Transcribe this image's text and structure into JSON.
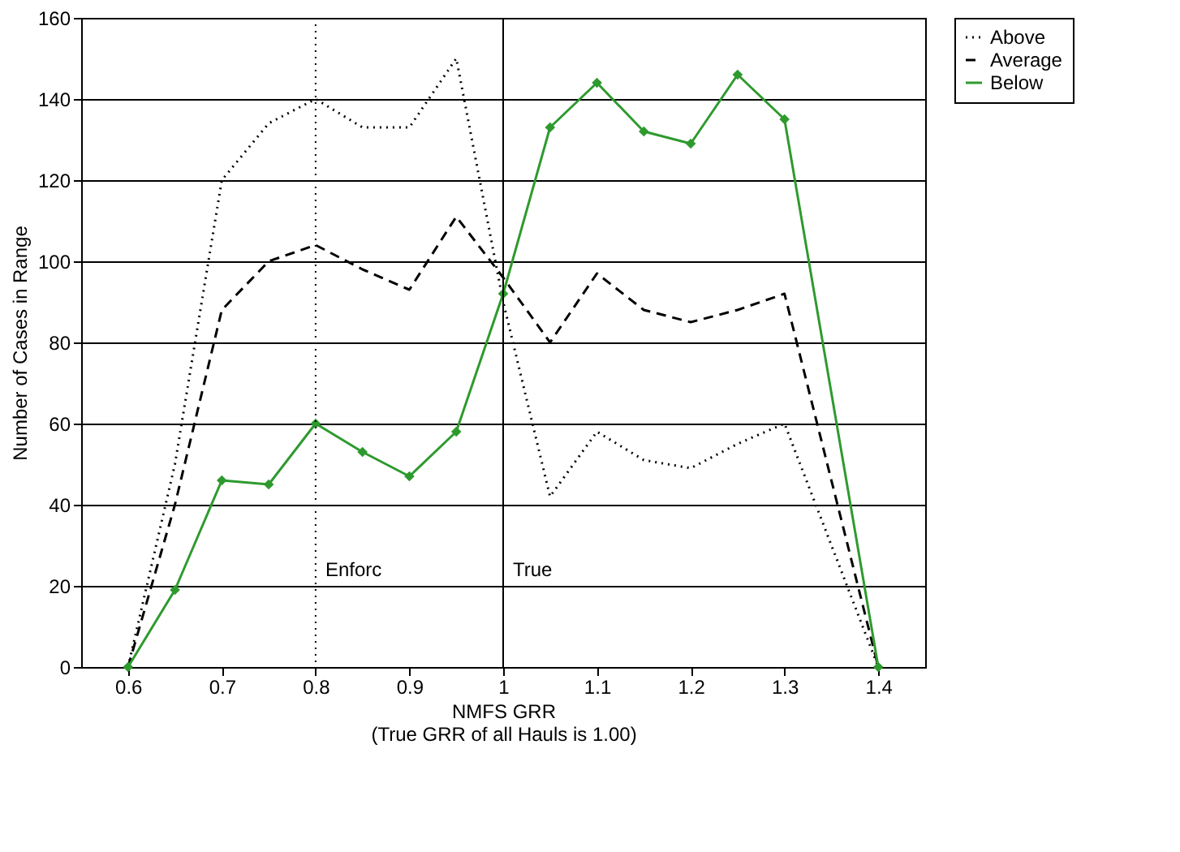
{
  "chart_data": {
    "type": "line",
    "xlabel": "NMFS GRR\n(True GRR of all Hauls is 1.00)",
    "ylabel": "Number of Cases in Range",
    "x": [
      0.6,
      0.65,
      0.7,
      0.75,
      0.8,
      0.85,
      0.9,
      0.95,
      1.0,
      1.05,
      1.1,
      1.15,
      1.2,
      1.25,
      1.3,
      1.4
    ],
    "series": [
      {
        "name": "Above",
        "color": "#000000",
        "line_style": "dotted",
        "marker": "none",
        "values": [
          0,
          50,
          120,
          134,
          140,
          133,
          133,
          150,
          90,
          42,
          58,
          51,
          49,
          55,
          60,
          0
        ]
      },
      {
        "name": "Average",
        "color": "#000000",
        "line_style": "dashed",
        "marker": "none",
        "values": [
          0,
          40,
          88,
          100,
          104,
          98,
          93,
          111,
          96,
          80,
          97,
          88,
          85,
          88,
          92,
          0
        ]
      },
      {
        "name": "Below",
        "color": "#2e9a2e",
        "line_style": "solid",
        "marker": "diamond",
        "values": [
          0,
          19,
          46,
          45,
          60,
          53,
          47,
          58,
          92,
          133,
          144,
          132,
          129,
          146,
          135,
          0
        ]
      }
    ],
    "xlim": [
      0.55,
      1.45
    ],
    "xticks": [
      0.6,
      0.7,
      0.8,
      0.9,
      1,
      1.1,
      1.2,
      1.3,
      1.4
    ],
    "ylim": [
      0,
      160
    ],
    "yticks": [
      0,
      20,
      40,
      60,
      80,
      100,
      120,
      140,
      160
    ],
    "ref_lines": [
      {
        "axis": "x",
        "value": 0.8,
        "label": "Enforc",
        "line_style": "dotted"
      },
      {
        "axis": "x",
        "value": 1.0,
        "label": "True",
        "line_style": "solid"
      }
    ],
    "grid": "y",
    "legend": "right"
  }
}
